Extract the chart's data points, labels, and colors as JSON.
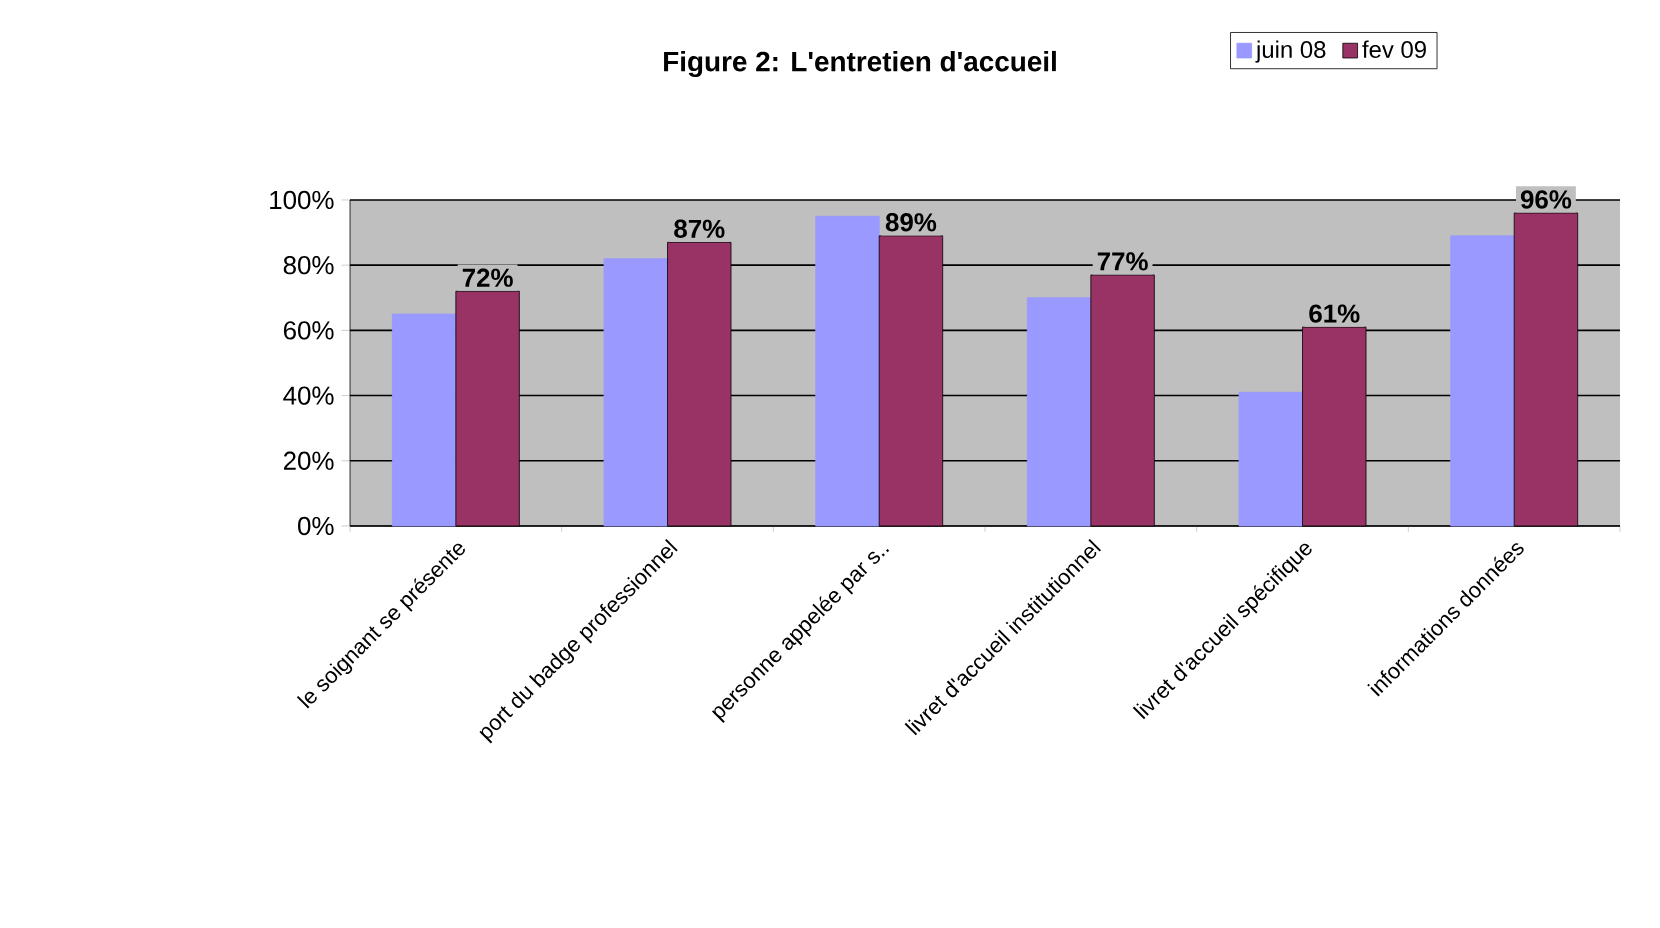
{
  "chart_data": {
    "type": "bar",
    "title": "Figure 2: L'entretien d'accueil",
    "categories": [
      "le soignant se présente",
      "port du badge professionnel",
      "personne appelée par s..",
      "livret d'accueil institutionnel",
      "livret d'accueil spécifique",
      "informations données"
    ],
    "series": [
      {
        "name": "juin 08",
        "color": "#9999ff",
        "values": [
          65,
          82,
          95,
          70,
          41,
          89
        ]
      },
      {
        "name": "fev 09",
        "color": "#993366",
        "values": [
          72,
          87,
          89,
          77,
          61,
          96
        ],
        "value_labels": [
          "72%",
          "87%",
          "89%",
          "77%",
          "61%",
          "96%"
        ]
      }
    ],
    "ylim": [
      0,
      100
    ],
    "yticks": [
      {
        "value": 0,
        "label": "0%"
      },
      {
        "value": 20,
        "label": "20%"
      },
      {
        "value": 40,
        "label": "40%"
      },
      {
        "value": 60,
        "label": "60%"
      },
      {
        "value": 80,
        "label": "80%"
      },
      {
        "value": 100,
        "label": "100%"
      }
    ],
    "grid": "y",
    "legend": "top right"
  }
}
